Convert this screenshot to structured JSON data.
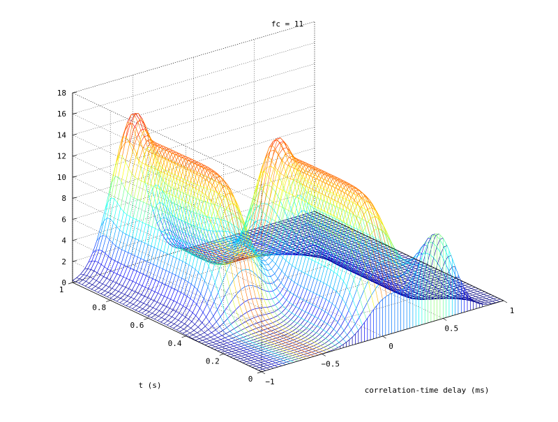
{
  "chart_data": {
    "type": "surface",
    "title": "fc = 11",
    "xlabel": "correlation-time delay (ms)",
    "ylabel": "t (s)",
    "zlabel": "",
    "xlim": [
      -1,
      1
    ],
    "ylim": [
      0,
      1
    ],
    "zlim": [
      0,
      18
    ],
    "x_ticks": [
      "-1",
      "-0.5",
      "0",
      "0.5",
      "1"
    ],
    "x_tick_values": [
      -1,
      -0.5,
      0,
      0.5,
      1
    ],
    "y_ticks": [
      "0",
      "0.2",
      "0.4",
      "0.6",
      "0.8",
      "1"
    ],
    "y_tick_values": [
      0,
      0.2,
      0.4,
      0.6,
      0.8,
      1
    ],
    "z_ticks": [
      "0",
      "2",
      "4",
      "6",
      "8",
      "10",
      "12",
      "14",
      "16",
      "18"
    ],
    "z_tick_values": [
      0,
      2,
      4,
      6,
      8,
      10,
      12,
      14,
      16,
      18
    ],
    "grid": true,
    "colormap": "jet",
    "surface": {
      "description_free_values": true,
      "ridges": [
        {
          "x_center": -0.55,
          "t_center": 0.72,
          "peak": 16.5,
          "plateau": 13.0
        },
        {
          "x_center": 0.05,
          "t_center": 0.35,
          "peak": 15.0,
          "plateau": 12.5
        }
      ],
      "front_profile_peak": 8.0
    }
  }
}
